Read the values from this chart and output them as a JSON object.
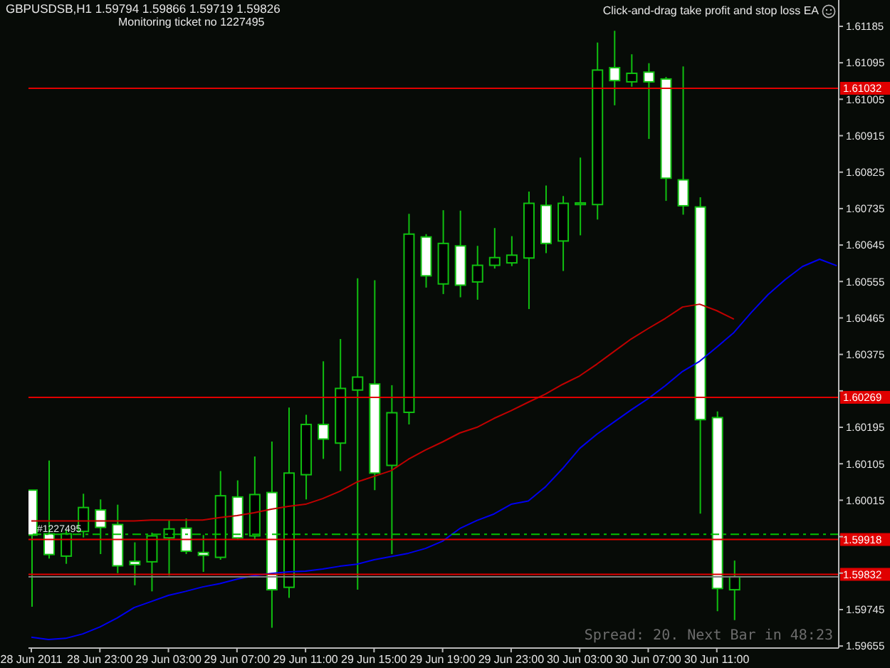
{
  "chart_data": {
    "type": "candlestick",
    "title": "GBPUSDSB,H1 1.59794 1.59866 1.59719 1.59826",
    "annotations": [
      "Monitoring ticket no 1227495",
      "Click-and-drag take profit and stop loss EA",
      "Spread: 20. Next Bar in 48:23",
      {
        "text": "#1227495",
        "x": "2011-06-28T19:00",
        "y": 1.59931
      }
    ],
    "x": [
      "2011-06-28T19:00",
      "2011-06-28T20:00",
      "2011-06-28T21:00",
      "2011-06-28T22:00",
      "2011-06-28T23:00",
      "2011-06-29T00:00",
      "2011-06-29T01:00",
      "2011-06-29T02:00",
      "2011-06-29T03:00",
      "2011-06-29T04:00",
      "2011-06-29T05:00",
      "2011-06-29T06:00",
      "2011-06-29T07:00",
      "2011-06-29T08:00",
      "2011-06-29T09:00",
      "2011-06-29T10:00",
      "2011-06-29T11:00",
      "2011-06-29T12:00",
      "2011-06-29T13:00",
      "2011-06-29T14:00",
      "2011-06-29T15:00",
      "2011-06-29T16:00",
      "2011-06-29T17:00",
      "2011-06-29T18:00",
      "2011-06-29T19:00",
      "2011-06-29T20:00",
      "2011-06-29T21:00",
      "2011-06-29T22:00",
      "2011-06-29T23:00",
      "2011-06-30T00:00",
      "2011-06-30T01:00",
      "2011-06-30T02:00",
      "2011-06-30T03:00",
      "2011-06-30T04:00",
      "2011-06-30T05:00",
      "2011-06-30T06:00",
      "2011-06-30T07:00",
      "2011-06-30T08:00",
      "2011-06-30T09:00",
      "2011-06-30T10:00",
      "2011-06-30T11:00",
      "2011-06-30T12:00"
    ],
    "ohlc": [
      [
        1.6004,
        1.6004,
        1.59752,
        1.59929
      ],
      [
        1.59932,
        1.60113,
        1.59871,
        1.59881
      ],
      [
        1.59877,
        1.59942,
        1.59858,
        1.59932
      ],
      [
        1.59938,
        1.60031,
        1.59923,
        1.59997
      ],
      [
        1.59991,
        1.60017,
        1.59882,
        1.59948
      ],
      [
        1.59955,
        1.60004,
        1.59835,
        1.59853
      ],
      [
        1.59864,
        1.59911,
        1.59805,
        1.59856
      ],
      [
        1.59863,
        1.59935,
        1.5979,
        1.59927
      ],
      [
        1.59922,
        1.59966,
        1.59829,
        1.59944
      ],
      [
        1.59946,
        1.5997,
        1.59882,
        1.59889
      ],
      [
        1.59886,
        1.59929,
        1.59838,
        1.59879
      ],
      [
        1.59874,
        1.60087,
        1.59868,
        1.60026
      ],
      [
        1.60023,
        1.60064,
        1.59917,
        1.59922
      ],
      [
        1.59927,
        1.60123,
        1.59917,
        1.60029
      ],
      [
        1.60034,
        1.6016,
        1.597,
        1.59794
      ],
      [
        1.598,
        1.60244,
        1.59774,
        1.60082
      ],
      [
        1.60078,
        1.60226,
        1.60017,
        1.60202
      ],
      [
        1.60202,
        1.60358,
        1.60117,
        1.60166
      ],
      [
        1.60156,
        1.60413,
        1.60087,
        1.60291
      ],
      [
        1.60287,
        1.60563,
        1.59794,
        1.60319
      ],
      [
        1.60302,
        1.60558,
        1.6004,
        1.60082
      ],
      [
        1.60101,
        1.60299,
        1.59882,
        1.60231
      ],
      [
        1.60232,
        1.60722,
        1.60202,
        1.60672
      ],
      [
        1.60665,
        1.60672,
        1.6054,
        1.60569
      ],
      [
        1.60549,
        1.60731,
        1.60524,
        1.60649
      ],
      [
        1.60643,
        1.6073,
        1.60516,
        1.60546
      ],
      [
        1.60554,
        1.60643,
        1.6051,
        1.60595
      ],
      [
        1.60595,
        1.60687,
        1.60587,
        1.60614
      ],
      [
        1.60601,
        1.60667,
        1.60593,
        1.6062
      ],
      [
        1.60613,
        1.60777,
        1.60487,
        1.60748
      ],
      [
        1.60743,
        1.60792,
        1.60625,
        1.60649
      ],
      [
        1.60655,
        1.60766,
        1.60581,
        1.60748
      ],
      [
        1.60745,
        1.60861,
        1.60669,
        1.60749
      ],
      [
        1.60745,
        1.61145,
        1.60708,
        1.61077
      ],
      [
        1.61083,
        1.61174,
        1.6099,
        1.61051
      ],
      [
        1.61048,
        1.61116,
        1.61036,
        1.61069
      ],
      [
        1.61072,
        1.61094,
        1.60907,
        1.61048
      ],
      [
        1.61055,
        1.6106,
        1.60754,
        1.6081
      ],
      [
        1.60806,
        1.61086,
        1.6072,
        1.60742
      ],
      [
        1.60739,
        1.60763,
        1.59982,
        1.60214
      ],
      [
        1.60219,
        1.60234,
        1.59741,
        1.59797
      ],
      [
        1.59794,
        1.59866,
        1.59719,
        1.59826
      ]
    ],
    "color": "#10c010",
    "colors": [
      "#ffffff",
      "#ffffff",
      "#000000",
      "#000000",
      "#ffffff",
      "#ffffff",
      "#ffffff",
      "#000000",
      "#000000",
      "#ffffff",
      "#ffffff",
      "#000000",
      "#ffffff",
      "#000000",
      "#ffffff",
      "#000000",
      "#000000",
      "#ffffff",
      "#000000",
      "#000000",
      "#ffffff",
      "#000000",
      "#000000",
      "#ffffff",
      "#000000",
      "#ffffff",
      "#000000",
      "#000000",
      "#000000",
      "#000000",
      "#ffffff",
      "#000000",
      "#000000",
      "#000000",
      "#ffffff",
      "#000000",
      "#ffffff",
      "#ffffff",
      "#ffffff",
      "#ffffff",
      "#ffffff",
      "#000000"
    ],
    "series": [
      {
        "type": "line",
        "color": "#c00000",
        "values": [
          1.59964,
          1.59964,
          1.59964,
          1.59964,
          1.59964,
          1.59964,
          1.59964,
          1.59966,
          1.59966,
          1.59966,
          1.59966,
          1.59972,
          1.59977,
          1.59984,
          1.59993,
          1.6,
          1.60005,
          1.60019,
          1.60037,
          1.6006,
          1.60074,
          1.60088,
          1.60116,
          1.60139,
          1.60159,
          1.60181,
          1.60195,
          1.60217,
          1.60236,
          1.60257,
          1.60277,
          1.60301,
          1.60322,
          1.60351,
          1.60382,
          1.60413,
          1.60439,
          1.60464,
          1.60492,
          1.60499,
          1.60483,
          1.60462
        ]
      },
      {
        "type": "line",
        "color": "#0000f0",
        "x": [
          "2011-06-28T19:00",
          "2011-06-28T20:00",
          "2011-06-28T21:00",
          "2011-06-28T22:00",
          "2011-06-28T23:00",
          "2011-06-29T00:00",
          "2011-06-29T01:00",
          "2011-06-29T02:00",
          "2011-06-29T03:00",
          "2011-06-29T04:00",
          "2011-06-29T05:00",
          "2011-06-29T06:00",
          "2011-06-29T07:00",
          "2011-06-29T08:00",
          "2011-06-29T09:00",
          "2011-06-29T10:00",
          "2011-06-29T11:00",
          "2011-06-29T12:00",
          "2011-06-29T13:00",
          "2011-06-29T14:00",
          "2011-06-29T15:00",
          "2011-06-29T16:00",
          "2011-06-29T17:00",
          "2011-06-29T18:00",
          "2011-06-29T19:00",
          "2011-06-29T20:00",
          "2011-06-29T21:00",
          "2011-06-29T22:00",
          "2011-06-29T23:00",
          "2011-06-30T00:00",
          "2011-06-30T01:00",
          "2011-06-30T02:00",
          "2011-06-30T03:00",
          "2011-06-30T04:00",
          "2011-06-30T05:00",
          "2011-06-30T06:00",
          "2011-06-30T07:00",
          "2011-06-30T08:00",
          "2011-06-30T09:00",
          "2011-06-30T10:00",
          "2011-06-30T11:00",
          "2011-06-30T12:00",
          "2011-06-30T13:00",
          "2011-06-30T14:00",
          "2011-06-30T15:00",
          "2011-06-30T16:00",
          "2011-06-30T17:00",
          "2011-06-30T18:00"
        ],
        "values": [
          1.59677,
          1.59671,
          1.59674,
          1.59685,
          1.59702,
          1.59724,
          1.5975,
          1.59765,
          1.5978,
          1.5979,
          1.59801,
          1.59809,
          1.5982,
          1.59829,
          1.59834,
          1.59838,
          1.5984,
          1.59845,
          1.59852,
          1.59857,
          1.59868,
          1.59876,
          1.59884,
          1.59896,
          1.59914,
          1.59945,
          1.59965,
          1.59981,
          1.60005,
          1.60013,
          1.60048,
          1.60093,
          1.60143,
          1.60178,
          1.60208,
          1.60238,
          1.60266,
          1.60298,
          1.60333,
          1.60358,
          1.60393,
          1.60429,
          1.60478,
          1.60523,
          1.6056,
          1.60592,
          1.6061,
          1.60594
        ]
      }
    ],
    "xlim": [
      "2011-06-28T18:50",
      "2011-06-30T18:07"
    ],
    "xticks": [
      {
        "value": "2011-06-28T19:00",
        "label": "28 Jun 2011"
      },
      {
        "value": "2011-06-28T23:00",
        "label": "28 Jun 23:00"
      },
      {
        "value": "2011-06-29T03:00",
        "label": "29 Jun 03:00"
      },
      {
        "value": "2011-06-29T07:00",
        "label": "29 Jun 07:00"
      },
      {
        "value": "2011-06-29T11:00",
        "label": "29 Jun 11:00"
      },
      {
        "value": "2011-06-29T15:00",
        "label": "29 Jun 15:00"
      },
      {
        "value": "2011-06-29T19:00",
        "label": "29 Jun 19:00"
      },
      {
        "value": "2011-06-29T23:00",
        "label": "29 Jun 23:00"
      },
      {
        "value": "2011-06-30T03:00",
        "label": "30 Jun 03:00"
      },
      {
        "value": "2011-06-30T07:00",
        "label": "30 Jun 07:00"
      },
      {
        "value": "2011-06-30T11:00",
        "label": "30 Jun 11:00"
      }
    ],
    "ylim": [
      1.5965,
      1.6125
    ],
    "yticks": [
      1.59655,
      1.59745,
      {
        "value": 1.59835,
        "label": null
      },
      {
        "value": 1.59925,
        "label": null
      },
      1.60015,
      1.60105,
      1.60195,
      {
        "value": 1.60285,
        "label": null
      },
      1.60375,
      1.60465,
      1.60555,
      1.60645,
      1.60735,
      1.60825,
      1.60915,
      1.61005,
      1.61095,
      1.61185
    ],
    "ref_lines": [
      {
        "axis": "y",
        "value": 1.61032,
        "label": "1.61032",
        "color": "#e00000"
      },
      {
        "axis": "y",
        "value": 1.60269,
        "label": "1.60269",
        "color": "#e00000"
      },
      {
        "axis": "y",
        "value": 1.59918,
        "label": "1.59918",
        "color": "#e00000"
      },
      {
        "axis": "y",
        "value": 1.59832,
        "label": "1.59832",
        "color": "#e00000"
      },
      {
        "axis": "y",
        "value": 1.59931,
        "color": "#00c000",
        "line_style": "dashed"
      },
      {
        "axis": "y",
        "value": 1.59826,
        "color": "#808080"
      }
    ]
  }
}
